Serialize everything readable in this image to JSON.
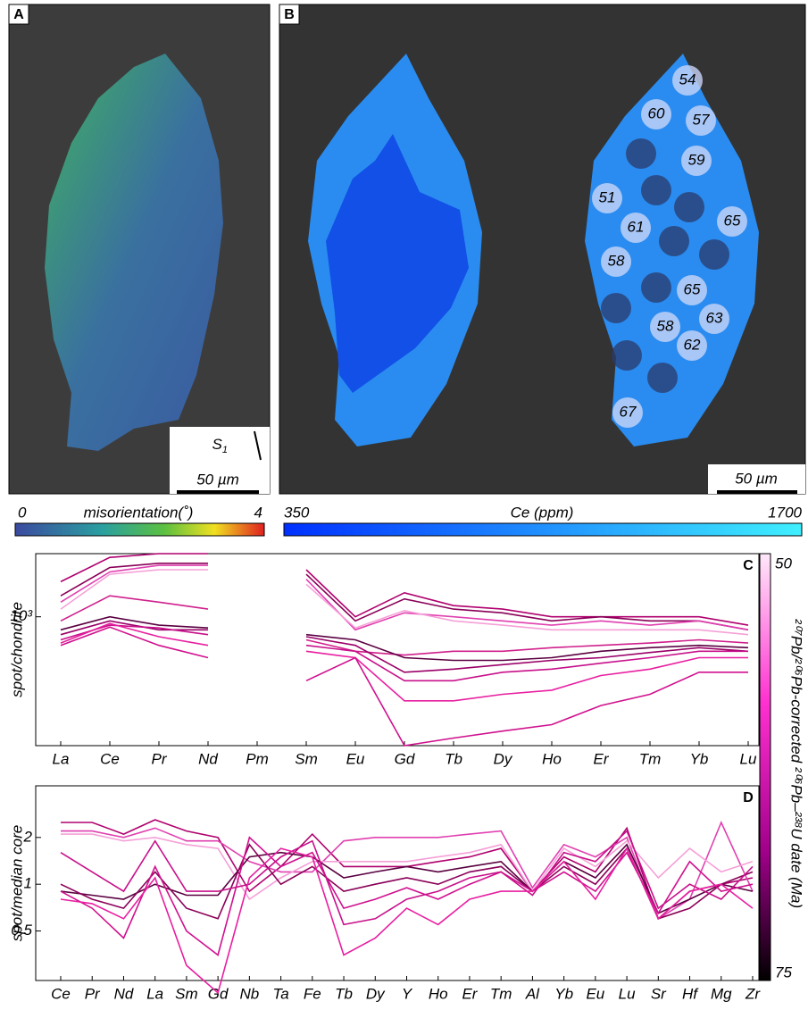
{
  "panel_a": {
    "letter": "A",
    "scale_bar": "50 µm",
    "foliation": "S",
    "foliation_sub": "1",
    "colorbar": {
      "min": "0",
      "label": "misorientation(˚)",
      "max": "4"
    }
  },
  "panel_b": {
    "letter": "B",
    "scale_bar": "50 µm",
    "spots": [
      "54",
      "60",
      "57",
      "59",
      "51",
      "61",
      "65",
      "58",
      "65",
      "58",
      "63",
      "62",
      "67"
    ],
    "colorbar": {
      "min": "350",
      "label": "Ce (ppm)",
      "max": "1700"
    }
  },
  "age_colorbar": {
    "top": "50",
    "bottom": "75",
    "label": "²⁰⁷Pb/²⁰⁶Pb-corrected ²⁰⁶Pb–²³⁸U date (Ma)"
  },
  "chart_data": [
    {
      "type": "line",
      "panel": "C",
      "y_label": "spot/chondrite",
      "log_scale": true,
      "categories": [
        "La",
        "Ce",
        "Pr",
        "Nd",
        "Pm",
        "Sm",
        "Eu",
        "Gd",
        "Tb",
        "Dy",
        "Ho",
        "Er",
        "Tm",
        "Yb",
        "Lu"
      ],
      "ylim": [
        200,
        2200
      ],
      "yticks": [
        {
          "value": 1000,
          "label": "10³"
        }
      ],
      "series": [
        {
          "color": "#b0006e",
          "values": [
            1550,
            2100,
            2200,
            2200,
            null,
            1800,
            1000,
            1350,
            1150,
            1100,
            1000,
            1000,
            1000,
            1000,
            900
          ]
        },
        {
          "color": "#8a0058",
          "values": [
            1300,
            1850,
            1950,
            1950,
            null,
            1700,
            950,
            1250,
            1100,
            1050,
            950,
            1000,
            950,
            950,
            850
          ]
        },
        {
          "color": "#e040b0",
          "values": [
            1200,
            1750,
            1900,
            1900,
            null,
            1600,
            850,
            1050,
            1000,
            950,
            900,
            950,
            900,
            950,
            850
          ]
        },
        {
          "color": "#f5a0d8",
          "values": [
            1100,
            1700,
            1800,
            1800,
            null,
            1500,
            870,
            1080,
            950,
            900,
            850,
            850,
            850,
            850,
            800
          ]
        },
        {
          "color": "#d0208c",
          "values": [
            950,
            1300,
            1200,
            1100,
            null,
            750,
            650,
            620,
            650,
            650,
            680,
            700,
            720,
            750,
            720
          ]
        },
        {
          "color": "#5a0040",
          "values": [
            850,
            1000,
            900,
            870,
            null,
            800,
            750,
            600,
            580,
            580,
            600,
            650,
            680,
            700,
            680
          ]
        },
        {
          "color": "#9a0068",
          "values": [
            800,
            950,
            850,
            850,
            null,
            780,
            700,
            500,
            520,
            550,
            580,
            600,
            640,
            680,
            650
          ]
        },
        {
          "color": "#c8108a",
          "values": [
            750,
            900,
            870,
            800,
            null,
            700,
            650,
            450,
            450,
            500,
            520,
            560,
            600,
            650,
            650
          ]
        },
        {
          "color": "#e81ea0",
          "values": [
            720,
            920,
            780,
            700,
            null,
            650,
            600,
            350,
            350,
            380,
            400,
            480,
            520,
            600,
            600
          ]
        },
        {
          "color": "#d0108e",
          "values": [
            700,
            880,
            700,
            600,
            null,
            450,
            600,
            200,
            220,
            240,
            260,
            330,
            380,
            500,
            500
          ]
        }
      ]
    },
    {
      "type": "line",
      "panel": "D",
      "y_label": "spot/median core",
      "log_scale": true,
      "categories": [
        "Ce",
        "Pr",
        "Nd",
        "La",
        "Sm",
        "Gd",
        "Nb",
        "Ta",
        "Fe",
        "Tb",
        "Dy",
        "Y",
        "Ho",
        "Er",
        "Tm",
        "Al",
        "Yb",
        "Eu",
        "Lu",
        "Sr",
        "Hf",
        "Mg",
        "Zr"
      ],
      "ylim": [
        0.24,
        4.3
      ],
      "yticks": [
        0.5,
        1,
        2
      ],
      "series": [
        {
          "color": "#b0006e",
          "values": [
            2.5,
            2.5,
            2.1,
            2.6,
            2.2,
            2.0,
            0.9,
            1.3,
            2.1,
            1.3,
            1.3,
            1.3,
            1.4,
            1.5,
            1.7,
            0.9,
            1.5,
            1.2,
            2.3,
            0.6,
            0.9,
            1.0,
            1.1
          ]
        },
        {
          "color": "#e040b0",
          "values": [
            2.2,
            2.2,
            2.0,
            2.3,
            1.9,
            1.9,
            1.4,
            1.2,
            1.2,
            1.9,
            2.0,
            2.0,
            2.0,
            2.1,
            2.2,
            0.95,
            1.8,
            1.5,
            2.0,
            0.6,
            0.8,
            2.5,
            0.9
          ]
        },
        {
          "color": "#f5a0d8",
          "values": [
            2.1,
            2.1,
            1.9,
            2.0,
            1.8,
            1.7,
            0.8,
            1.1,
            1.4,
            1.4,
            1.4,
            1.4,
            1.5,
            1.6,
            1.8,
            0.9,
            1.7,
            1.3,
            1.9,
            1.1,
            1.7,
            1.2,
            1.4
          ]
        },
        {
          "color": "#5a0040",
          "values": [
            0.9,
            0.85,
            0.8,
            1.0,
            0.85,
            0.85,
            1.5,
            1.6,
            1.5,
            1.1,
            1.2,
            1.3,
            1.2,
            1.3,
            1.4,
            0.9,
            1.4,
            1.1,
            1.8,
            0.65,
            0.8,
            1.0,
            0.9
          ]
        },
        {
          "color": "#8a0058",
          "values": [
            1.0,
            0.8,
            0.7,
            1.2,
            0.7,
            0.6,
            1.8,
            1.0,
            1.3,
            0.9,
            1.0,
            1.1,
            1.0,
            1.2,
            1.3,
            0.9,
            1.3,
            1.0,
            1.7,
            0.6,
            0.7,
            1.0,
            1.2
          ]
        },
        {
          "color": "#d0108e",
          "values": [
            0.9,
            0.7,
            0.45,
            1.3,
            0.5,
            0.35,
            2.0,
            1.3,
            1.6,
            0.7,
            0.8,
            0.95,
            0.8,
            1.0,
            1.2,
            0.9,
            1.2,
            0.9,
            1.6,
            0.65,
            1.4,
            0.9,
            1.0
          ]
        },
        {
          "color": "#c8108a",
          "values": [
            1.6,
            1.2,
            0.9,
            1.9,
            0.9,
            0.9,
            1.0,
            1.5,
            1.9,
            0.55,
            0.6,
            0.8,
            0.9,
            1.1,
            1.2,
            0.85,
            1.6,
            1.4,
            2.2,
            0.7,
            1.0,
            0.8,
            1.3
          ]
        },
        {
          "color": "#e81ea0",
          "values": [
            0.8,
            0.75,
            0.6,
            1.1,
            0.3,
            0.2,
            1.1,
            1.7,
            1.5,
            0.35,
            0.45,
            0.7,
            0.55,
            0.8,
            0.9,
            0.9,
            1.4,
            0.8,
            1.7,
            0.6,
            0.9,
            1.0,
            0.7
          ]
        }
      ]
    }
  ]
}
